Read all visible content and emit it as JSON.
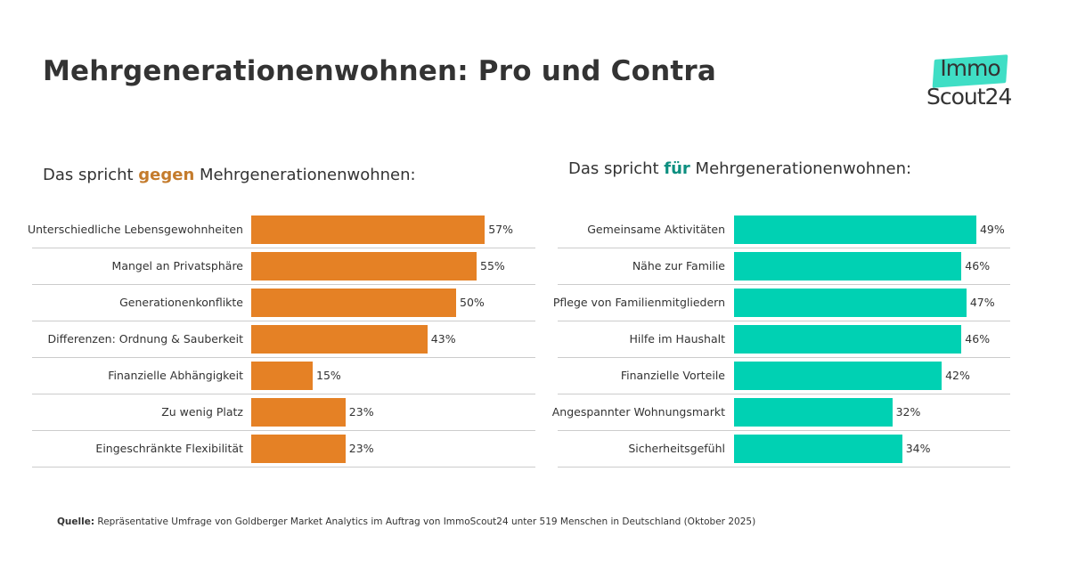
{
  "title": "Mehrgenerationenwohnen: Pro und Contra",
  "logo": {
    "line1": "Immo",
    "line2": "Scout24"
  },
  "source": {
    "label": "Quelle:",
    "text": "Repräsentative Umfrage von Goldberger Market Analytics im Auftrag von ImmoScout24 unter 519 Menschen in Deutschland (Oktober 2025)"
  },
  "colors": {
    "contra": "#e58125",
    "pro": "#00d1b3"
  },
  "chart_data": [
    {
      "type": "bar",
      "orientation": "horizontal",
      "title_parts": [
        "Das spricht ",
        "gegen",
        " Mehrgenerationenwohnen:"
      ],
      "categories": [
        "Unterschiedliche Lebensgewohnheiten",
        "Mangel an Privatsphäre",
        "Generationenkonflikte",
        "Differenzen: Ordnung & Sauberkeit",
        "Finanzielle Abhängigkeit",
        "Zu wenig Platz",
        "Eingeschränkte Flexibilität"
      ],
      "values": [
        57,
        55,
        50,
        43,
        15,
        23,
        23
      ],
      "unit": "%",
      "color": "#e58125",
      "grid": false
    },
    {
      "type": "bar",
      "orientation": "horizontal",
      "title_parts": [
        "Das spricht ",
        "für",
        " Mehrgenerationenwohnen:"
      ],
      "categories": [
        "Gemeinsame Aktivitäten",
        "Nähe zur Familie",
        "Pflege von Familienmitgliedern",
        "Hilfe im Haushalt",
        "Finanzielle Vorteile",
        "Angespannter Wohnungsmarkt",
        "Sicherheitsgefühl"
      ],
      "values": [
        49,
        46,
        47,
        46,
        42,
        32,
        34
      ],
      "unit": "%",
      "color": "#00d1b3",
      "grid": false
    }
  ]
}
